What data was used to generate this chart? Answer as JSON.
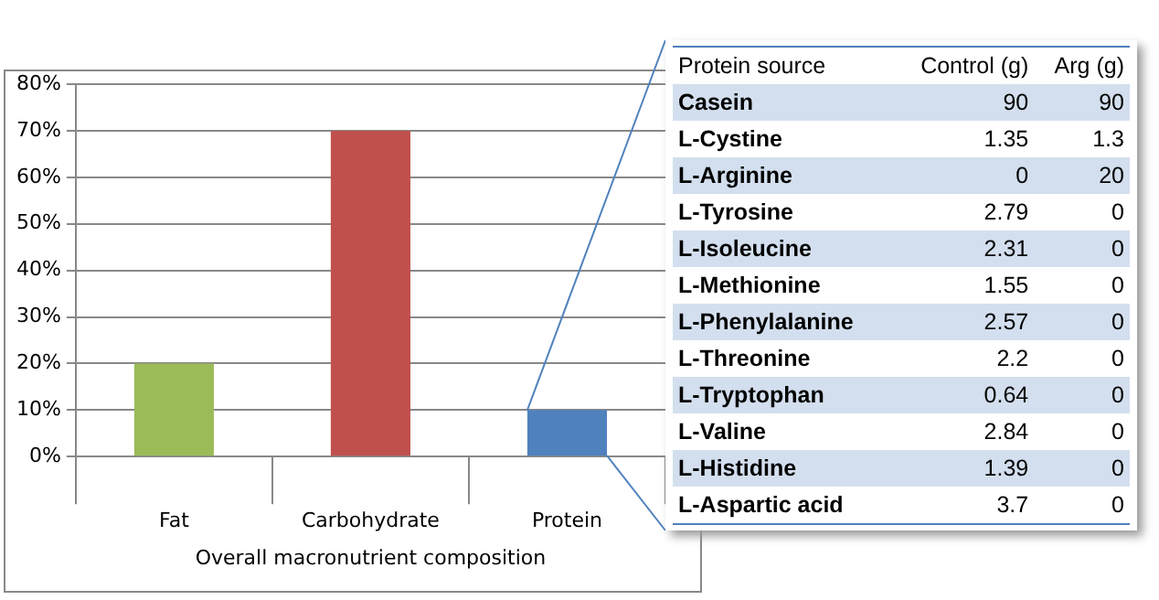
{
  "chart_data": [
    {
      "type": "bar",
      "categories": [
        "Fat",
        "Carbohydrate",
        "Protein"
      ],
      "values": [
        20,
        70,
        10
      ],
      "colors": [
        "#9bbb59",
        "#c0504d",
        "#4f81bd"
      ],
      "xlabel": "Overall macronutrient composition",
      "ylim": [
        0,
        80
      ],
      "yticks": [
        {
          "value": 0,
          "label": "0%"
        },
        {
          "value": 10,
          "label": "10%"
        },
        {
          "value": 20,
          "label": "20%"
        },
        {
          "value": 30,
          "label": "30%"
        },
        {
          "value": 40,
          "label": "40%"
        },
        {
          "value": 50,
          "label": "50%"
        },
        {
          "value": 60,
          "label": "60%"
        },
        {
          "value": 70,
          "label": "70%"
        },
        {
          "value": 80,
          "label": "80%"
        }
      ],
      "grid": "y",
      "legend": false
    },
    {
      "type": "other",
      "xlabel": "Protein source",
      "categories": [
        "Casein",
        "L-Cystine",
        "L-Arginine",
        "L-Tyrosine",
        "L-Isoleucine",
        "L-Methionine",
        "L-Phenylalanine",
        "L-Threonine",
        "L-Tryptophan",
        "L-Valine",
        "L-Histidine",
        "L-Aspartic acid"
      ],
      "series": [
        {
          "name": "Control (g)",
          "colors": [
            "#d3dfee",
            "#ffffff",
            "#d3dfee",
            "#ffffff",
            "#d3dfee",
            "#ffffff",
            "#d3dfee",
            "#ffffff",
            "#d3dfee",
            "#ffffff",
            "#d3dfee",
            "#ffffff"
          ],
          "values": [
            90,
            1.35,
            0,
            2.79,
            2.31,
            1.55,
            2.57,
            2.2,
            0.64,
            2.84,
            1.39,
            3.7
          ]
        },
        {
          "name": "Arg (g)",
          "colors": [
            "#d3dfee",
            "#ffffff",
            "#d3dfee",
            "#ffffff",
            "#d3dfee",
            "#ffffff",
            "#d3dfee",
            "#ffffff",
            "#d3dfee",
            "#ffffff",
            "#d3dfee",
            "#ffffff"
          ],
          "values": [
            90,
            1.3,
            20,
            0,
            0,
            0,
            0,
            0,
            0,
            0,
            0,
            0
          ]
        }
      ],
      "data_labels": true
    }
  ]
}
